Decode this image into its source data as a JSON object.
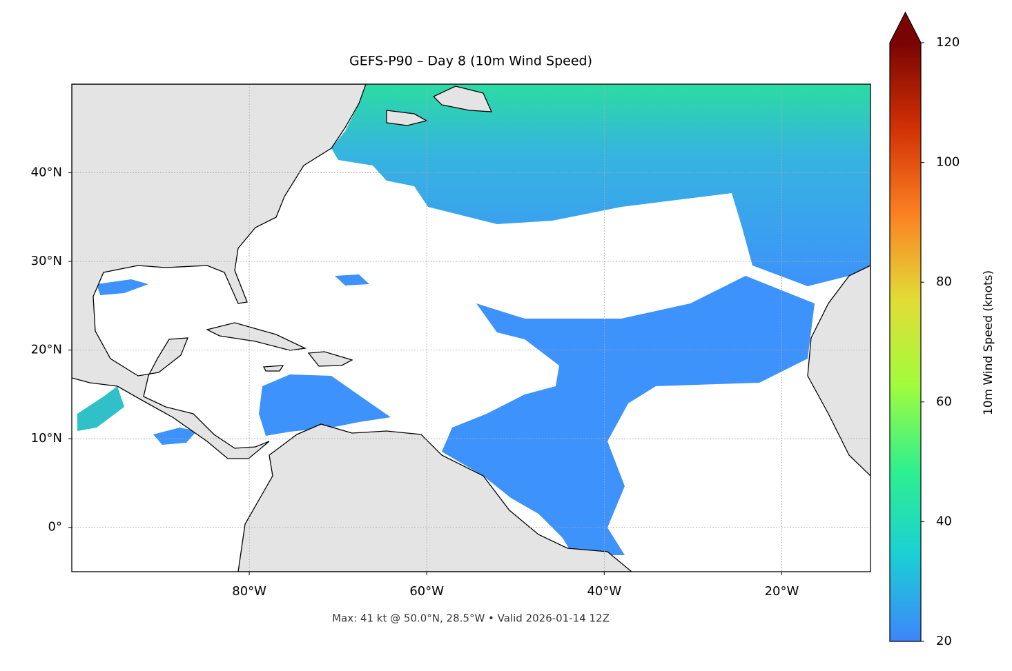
{
  "chart_data": {
    "type": "map",
    "title": "GEFS-P90 – Day 8 (10m Wind Speed)",
    "subtitle": "Max: 41 kt @ 50.0°N, 28.5°W • Valid 2026-01-14 12Z",
    "xlim": [
      -100,
      -10
    ],
    "ylim": [
      -5,
      50
    ],
    "xticks": [
      {
        "value": -80,
        "label": "80°W"
      },
      {
        "value": -60,
        "label": "60°W"
      },
      {
        "value": -40,
        "label": "40°W"
      },
      {
        "value": -20,
        "label": "20°W"
      }
    ],
    "yticks": [
      {
        "value": 0,
        "label": "0°"
      },
      {
        "value": 10,
        "label": "10°N"
      },
      {
        "value": 20,
        "label": "20°N"
      },
      {
        "value": 30,
        "label": "30°N"
      },
      {
        "value": 40,
        "label": "40°N"
      }
    ],
    "grid": true,
    "colorbar": {
      "label": "10m Wind Speed (knots)",
      "lim": [
        20,
        120
      ],
      "ticks": [
        20,
        40,
        60,
        80,
        100,
        120
      ],
      "colors": [
        "#3e85fb",
        "#1bcfd5",
        "#2ef08e",
        "#a2fc3c",
        "#e2dc37",
        "#fb8022",
        "#d23105",
        "#7a0403"
      ]
    }
  }
}
